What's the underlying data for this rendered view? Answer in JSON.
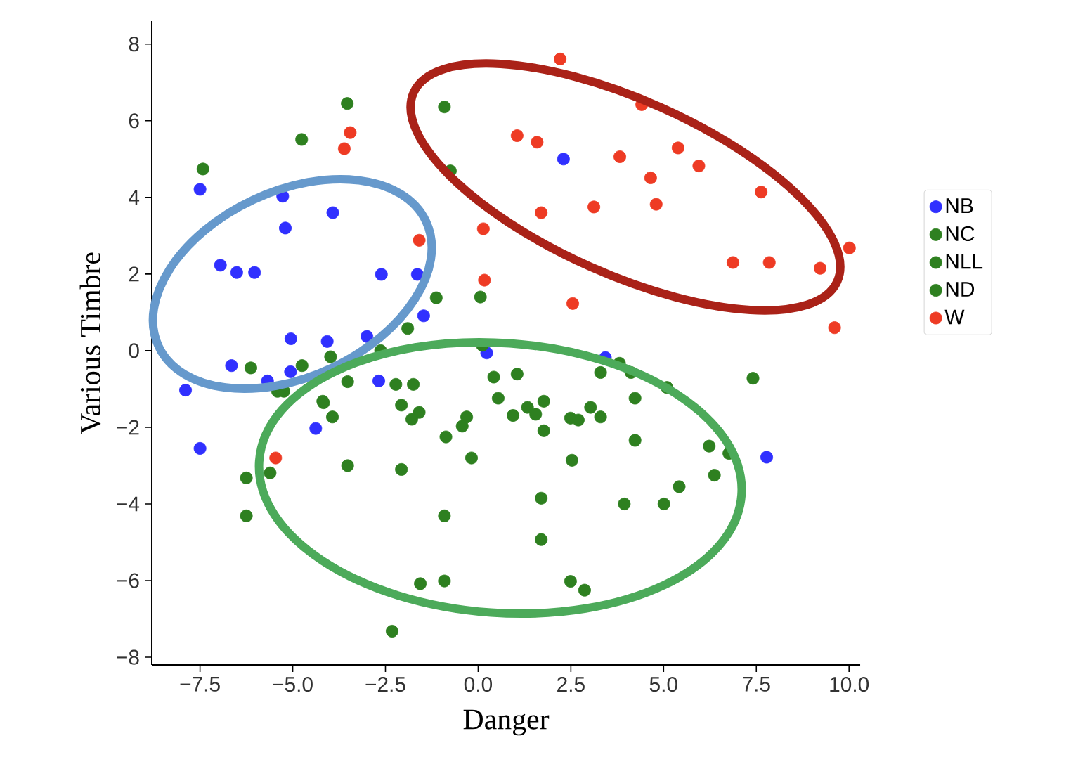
{
  "chart_data": {
    "type": "scatter",
    "xlabel": "Danger",
    "ylabel": "Various Timbre",
    "marker": "circle",
    "legend": "right",
    "xlim": [
      -8.8,
      10.3
    ],
    "ylim": [
      -8.2,
      8.6
    ],
    "xticks": [
      {
        "value": -7.5,
        "label": "−7.5"
      },
      {
        "value": -5,
        "label": "−5.0"
      },
      {
        "value": -2.5,
        "label": "−2.5"
      },
      {
        "value": 0,
        "label": "0.0"
      },
      {
        "value": 2.5,
        "label": "2.5"
      },
      {
        "value": 5,
        "label": "5.0"
      },
      {
        "value": 7.5,
        "label": "7.5"
      },
      {
        "value": 10,
        "label": "10.0"
      }
    ],
    "yticks": [
      {
        "value": -8,
        "label": "−8"
      },
      {
        "value": -6,
        "label": "−6"
      },
      {
        "value": -4,
        "label": "−4"
      },
      {
        "value": -2,
        "label": "−2"
      },
      0,
      2,
      4,
      6,
      8
    ],
    "series": [
      {
        "name": "NB",
        "color": "#3030ff",
        "x": [
          -7.5,
          -5.27,
          -3.92,
          -5.2,
          -6.95,
          -6.51,
          -6.03,
          -2.61,
          -1.64,
          -1.47,
          -5.05,
          -4.07,
          -3.0,
          -6.65,
          -5.68,
          -5.06,
          -7.89,
          -2.68,
          -7.5,
          -4.38,
          0.23,
          2.3,
          3.43,
          7.78
        ],
        "values": [
          4.21,
          4.03,
          3.6,
          3.2,
          2.23,
          2.04,
          2.04,
          1.99,
          1.99,
          0.91,
          0.31,
          0.24,
          0.37,
          -0.39,
          -0.79,
          -0.55,
          -1.03,
          -0.79,
          -2.55,
          -2.03,
          -0.06,
          5.0,
          -0.18,
          -2.78
        ]
      },
      {
        "name": "NC",
        "color": "#2e8020",
        "x": [
          -3.53,
          -4.76,
          -7.42,
          -0.91,
          -0.75,
          -1.13,
          0.06,
          -1.9,
          -2.63,
          0.11,
          -6.13,
          -4.75,
          -3.98,
          -5.41,
          -4.17,
          -3.52,
          -5.24,
          -4.19,
          -3.93,
          -2.22,
          -1.75,
          -2.07,
          -1.59,
          -1.79,
          -0.87,
          -0.31,
          -0.43,
          -0.18,
          -3.52,
          -2.07,
          -6.25,
          -5.61,
          -6.25,
          -0.91,
          -1.56,
          -0.91,
          -2.32,
          0.42,
          0.54,
          1.05,
          0.94,
          1.33,
          1.77,
          1.55,
          1.77,
          2.49,
          2.7,
          3.03,
          3.3,
          3.3,
          3.81,
          4.12,
          5.09,
          4.23,
          4.23,
          7.41,
          2.53,
          6.23,
          6.76,
          6.37,
          5.42,
          5.01,
          3.94,
          1.7,
          1.7,
          2.49,
          2.87
        ],
        "values": [
          6.45,
          5.51,
          4.74,
          6.36,
          4.69,
          1.38,
          1.4,
          0.58,
          0.0,
          0.14,
          -0.45,
          -0.39,
          -0.16,
          -1.06,
          -1.36,
          -0.81,
          -1.06,
          -1.32,
          -1.73,
          -0.88,
          -0.88,
          -1.42,
          -1.61,
          -1.79,
          -2.25,
          -1.73,
          -1.97,
          -2.8,
          -3.0,
          -3.1,
          -3.32,
          -3.19,
          -4.31,
          -4.31,
          -6.08,
          -6.01,
          -7.32,
          -0.69,
          -1.24,
          -0.61,
          -1.69,
          -1.48,
          -1.32,
          -1.66,
          -2.09,
          -1.76,
          -1.81,
          -1.48,
          -1.73,
          -0.57,
          -0.33,
          -0.57,
          -0.96,
          -1.24,
          -2.34,
          -0.72,
          -2.86,
          -2.49,
          -2.68,
          -3.25,
          -3.55,
          -4.0,
          -4.0,
          -3.85,
          -4.93,
          -6.02,
          -6.25
        ]
      },
      {
        "name": "NLL",
        "color": "#2e8020"
      },
      {
        "name": "ND",
        "color": "#2e8020"
      },
      {
        "name": "W",
        "color": "#ee3b24",
        "x": [
          -3.45,
          -3.61,
          -1.59,
          0.14,
          0.17,
          -5.46,
          2.21,
          4.41,
          1.05,
          1.59,
          3.82,
          5.39,
          5.95,
          4.65,
          4.8,
          1.7,
          3.12,
          7.63,
          6.87,
          7.85,
          9.22,
          10.01,
          2.55,
          9.61
        ],
        "values": [
          5.69,
          5.27,
          2.88,
          3.18,
          1.84,
          -2.8,
          7.61,
          6.42,
          5.61,
          5.44,
          5.06,
          5.29,
          4.82,
          4.51,
          3.82,
          3.6,
          3.75,
          4.14,
          2.3,
          2.3,
          2.15,
          2.68,
          1.23,
          0.6
        ]
      }
    ]
  }
}
